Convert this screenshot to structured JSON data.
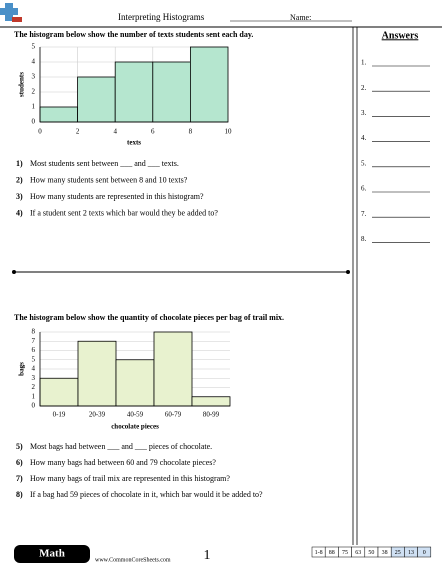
{
  "header": {
    "title": "Interpreting Histograms",
    "name_label": "Name:"
  },
  "answers": {
    "title": "Answers",
    "numbers": [
      "1.",
      "2.",
      "3.",
      "4.",
      "5.",
      "6.",
      "7.",
      "8."
    ]
  },
  "section1": {
    "prompt": "The histogram below show the number of texts students sent each day.",
    "chart": {
      "type": "histogram",
      "bins": [
        0,
        2,
        4,
        6,
        8,
        10
      ],
      "counts": [
        1,
        3,
        4,
        4,
        5
      ],
      "color": "#b5e6cf",
      "xlim": [
        0,
        10
      ],
      "xticks": [
        0,
        2,
        4,
        6,
        8,
        10
      ],
      "ylim": [
        0,
        5
      ],
      "yticks": [
        0,
        1,
        2,
        3,
        4,
        5
      ],
      "xlabel": "texts",
      "ylabel": "students",
      "grid": true
    },
    "questions": [
      {
        "number": "1)",
        "text": "Most students sent between ___ and ___ texts."
      },
      {
        "number": "2)",
        "text": "How many students sent between 8 and 10 texts?"
      },
      {
        "number": "3)",
        "text": "How many students are represented in this histogram?"
      },
      {
        "number": "4)",
        "text": "If a student sent 2 texts which bar would they be added to?"
      }
    ]
  },
  "section2": {
    "prompt": "The histogram below show the quantity of chocolate pieces per bag of trail mix.",
    "chart": {
      "type": "bar",
      "categories": [
        "0-19",
        "20-39",
        "40-59",
        "60-79",
        "80-99"
      ],
      "values": [
        3,
        7,
        5,
        8,
        1
      ],
      "color": "#e8f2cf",
      "ylim": [
        0,
        8
      ],
      "yticks": [
        0,
        1,
        2,
        3,
        4,
        5,
        6,
        7,
        8
      ],
      "xlabel": "chocolate pieces",
      "ylabel": "bags",
      "grid": true
    },
    "questions": [
      {
        "number": "5)",
        "text": "Most bags had between ___ and ___ pieces of chocolate."
      },
      {
        "number": "6)",
        "text": "How many bags had between 60 and 79 chocolate pieces?"
      },
      {
        "number": "7)",
        "text": "How many bags of trail mix are represented in this histogram?"
      },
      {
        "number": "8)",
        "text": "If a bag had 59 pieces of chocolate in it, which bar would it be added to?"
      }
    ]
  },
  "footer": {
    "subject": "Math",
    "url": "www.CommonCoreSheets.com",
    "page": "1",
    "scores": [
      "1-8",
      "88",
      "75",
      "63",
      "50",
      "38",
      "25",
      "13",
      "0"
    ]
  }
}
